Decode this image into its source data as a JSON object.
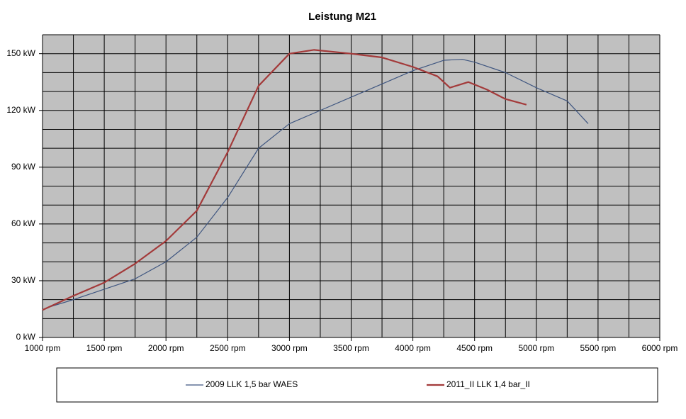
{
  "chart_data": {
    "type": "line",
    "title": "Leistung M21",
    "xlim": [
      1000,
      6000
    ],
    "xticks": [
      {
        "value": 1000,
        "label": "1000 rpm"
      },
      {
        "value": 1500,
        "label": "1500 rpm"
      },
      {
        "value": 2000,
        "label": "2000 rpm"
      },
      {
        "value": 2500,
        "label": "2500 rpm"
      },
      {
        "value": 3000,
        "label": "3000 rpm"
      },
      {
        "value": 3500,
        "label": "3500 rpm"
      },
      {
        "value": 4000,
        "label": "4000 rpm"
      },
      {
        "value": 4500,
        "label": "4500 rpm"
      },
      {
        "value": 5000,
        "label": "5000 rpm"
      },
      {
        "value": 5500,
        "label": "5500 rpm"
      },
      {
        "value": 6000,
        "label": "6000 rpm"
      }
    ],
    "ylim": [
      0,
      160
    ],
    "yticks": [
      {
        "value": 0,
        "label": "0 kW"
      },
      {
        "value": 30,
        "label": "30 kW"
      },
      {
        "value": 60,
        "label": "60 kW"
      },
      {
        "value": 90,
        "label": "90 kW"
      },
      {
        "value": 120,
        "label": "120 kW"
      },
      {
        "value": 150,
        "label": "150 kW"
      }
    ],
    "xgrid": [
      1000,
      1250,
      1500,
      1750,
      2000,
      2250,
      2500,
      2750,
      3000,
      3250,
      3500,
      3750,
      4000,
      4250,
      4500,
      4750,
      5000,
      5250,
      5500,
      5750,
      6000
    ],
    "ygrid": [
      0,
      10,
      20,
      30,
      40,
      50,
      60,
      70,
      80,
      90,
      100,
      110,
      120,
      130,
      140,
      150,
      160
    ],
    "grid": true,
    "legend": "bottom",
    "series": [
      {
        "name": "2009 LLK 1,5 bar WAES",
        "color": "#3f5680",
        "width": 1.2,
        "x": [
          1050,
          1250,
          1500,
          1750,
          2000,
          2250,
          2500,
          2750,
          3000,
          3250,
          3500,
          3750,
          4000,
          4250,
          4400,
          4500,
          4750,
          5000,
          5250,
          5420
        ],
        "values": [
          16,
          20,
          25.5,
          31,
          40,
          53,
          74,
          100,
          113,
          120,
          127,
          134,
          141,
          146.5,
          147,
          145.5,
          140,
          132,
          125,
          113
        ]
      },
      {
        "name": "2011_II LLK 1,4 bar_II",
        "color": "#a33a3a",
        "width": 2.2,
        "x": [
          1000,
          1250,
          1500,
          1750,
          2000,
          2250,
          2500,
          2750,
          3000,
          3200,
          3500,
          3750,
          4000,
          4200,
          4300,
          4450,
          4600,
          4750,
          4920
        ],
        "values": [
          14.5,
          22,
          29,
          39,
          51,
          67,
          98,
          133,
          150,
          152,
          150,
          148,
          143,
          138,
          132,
          135,
          131,
          126,
          123
        ]
      }
    ]
  }
}
